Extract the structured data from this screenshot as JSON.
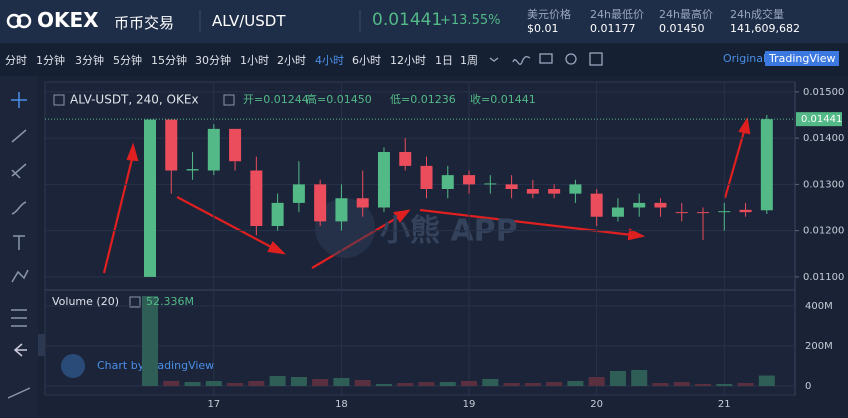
{
  "header": {
    "brand": "OKEX",
    "nav": "币币交易",
    "pair": "ALV/USDT",
    "price": "0.01441",
    "change": "+13.55%",
    "stats": [
      {
        "label": "美元价格",
        "value": "$0.01"
      },
      {
        "label": "24h最低价",
        "value": "0.01177"
      },
      {
        "label": "24h最高价",
        "value": "0.01450"
      },
      {
        "label": "24h成交量",
        "value": "141,609,682"
      }
    ]
  },
  "toolbar": {
    "intervals": [
      "分时",
      "1分钟",
      "3分钟",
      "5分钟",
      "15分钟",
      "30分钟",
      "1小时",
      "2小时",
      "4小时",
      "6小时",
      "12小时",
      "1日",
      "1周"
    ],
    "active": 8,
    "views": [
      "Original",
      "TradingView"
    ],
    "active_view": 1
  },
  "watermarks": [
    "Chart by TradingView",
    "小熊 APP"
  ],
  "chart_data": {
    "type": "candlestick",
    "legend": {
      "symbol": "ALV-USDT, 240, OKEx",
      "items": [
        "开=0.01244",
        "高=0.01450",
        "低=0.01236",
        "收=0.01441"
      ]
    },
    "categories": [
      null,
      null,
      null,
      "17",
      null,
      null,
      null,
      null,
      null,
      "18",
      null,
      null,
      null,
      null,
      null,
      "19",
      null,
      null,
      null,
      null,
      null,
      "20",
      null,
      null,
      null,
      null,
      null,
      "21",
      null,
      null
    ],
    "open": [
      0.011,
      0.0144,
      0.0133,
      0.0133,
      0.0142,
      0.0133,
      0.0121,
      0.0126,
      0.013,
      0.0122,
      0.0127,
      0.0125,
      0.0137,
      0.0134,
      0.0129,
      0.0132,
      0.013,
      0.013,
      0.0129,
      0.0129,
      0.0128,
      0.0128,
      0.0123,
      0.0125,
      0.0126,
      0.0124,
      0.0124,
      0.0124,
      0.01245,
      0.01244
    ],
    "high": [
      0.0144,
      0.0144,
      0.0137,
      0.0143,
      0.0142,
      0.0136,
      0.0128,
      0.0135,
      0.0131,
      0.013,
      0.0133,
      0.0138,
      0.014,
      0.0136,
      0.0134,
      0.0133,
      0.0132,
      0.0132,
      0.0131,
      0.013,
      0.0131,
      0.0129,
      0.0127,
      0.0128,
      0.0127,
      0.0126,
      0.0125,
      0.0126,
      0.0126,
      0.0145
    ],
    "low": [
      0.011,
      0.0128,
      0.0131,
      0.0132,
      0.0133,
      0.0119,
      0.012,
      0.0124,
      0.0121,
      0.012,
      0.0123,
      0.0124,
      0.0133,
      0.0127,
      0.0127,
      0.0128,
      0.0128,
      0.0127,
      0.0127,
      0.0127,
      0.0126,
      0.0121,
      0.0122,
      0.0123,
      0.0123,
      0.0122,
      0.0118,
      0.012,
      0.0123,
      0.01236
    ],
    "close": [
      0.0144,
      0.0133,
      0.01333,
      0.0142,
      0.0135,
      0.0121,
      0.0126,
      0.013,
      0.0122,
      0.0127,
      0.0125,
      0.0137,
      0.0134,
      0.0129,
      0.0132,
      0.013,
      0.01302,
      0.0129,
      0.0128,
      0.0128,
      0.013,
      0.0123,
      0.0125,
      0.0126,
      0.0125,
      0.01238,
      0.01238,
      0.01242,
      0.0124,
      0.01441
    ],
    "up_color": "#53b987",
    "down_color": "#eb4d5c",
    "ylim": [
      0.01076,
      0.01517
    ],
    "yticks": [
      {
        "value": 0.011,
        "label": "0.01100"
      },
      {
        "value": 0.012,
        "label": "0.01200"
      },
      {
        "value": 0.013,
        "label": "0.01300"
      },
      {
        "value": 0.014,
        "label": "0.01400"
      },
      {
        "value": 0.015,
        "label": "0.01500"
      }
    ],
    "last_price": {
      "value": 0.01441,
      "label": "0.01441"
    },
    "grid": true,
    "volume": {
      "title": "Volume (20)",
      "value_label": "52.336M",
      "values": [
        450,
        25,
        20,
        25,
        15,
        25,
        50,
        45,
        35,
        40,
        30,
        10,
        15,
        20,
        20,
        25,
        35,
        15,
        15,
        20,
        25,
        45,
        75,
        80,
        15,
        20,
        10,
        10,
        15,
        52.336
      ],
      "up_color": "#2f5e56",
      "down_color": "#5a3041",
      "ylim": [
        -45,
        470
      ],
      "yticks": [
        0,
        {
          "value": 200,
          "label": "200M"
        },
        {
          "value": 400,
          "label": "400M"
        }
      ]
    }
  }
}
